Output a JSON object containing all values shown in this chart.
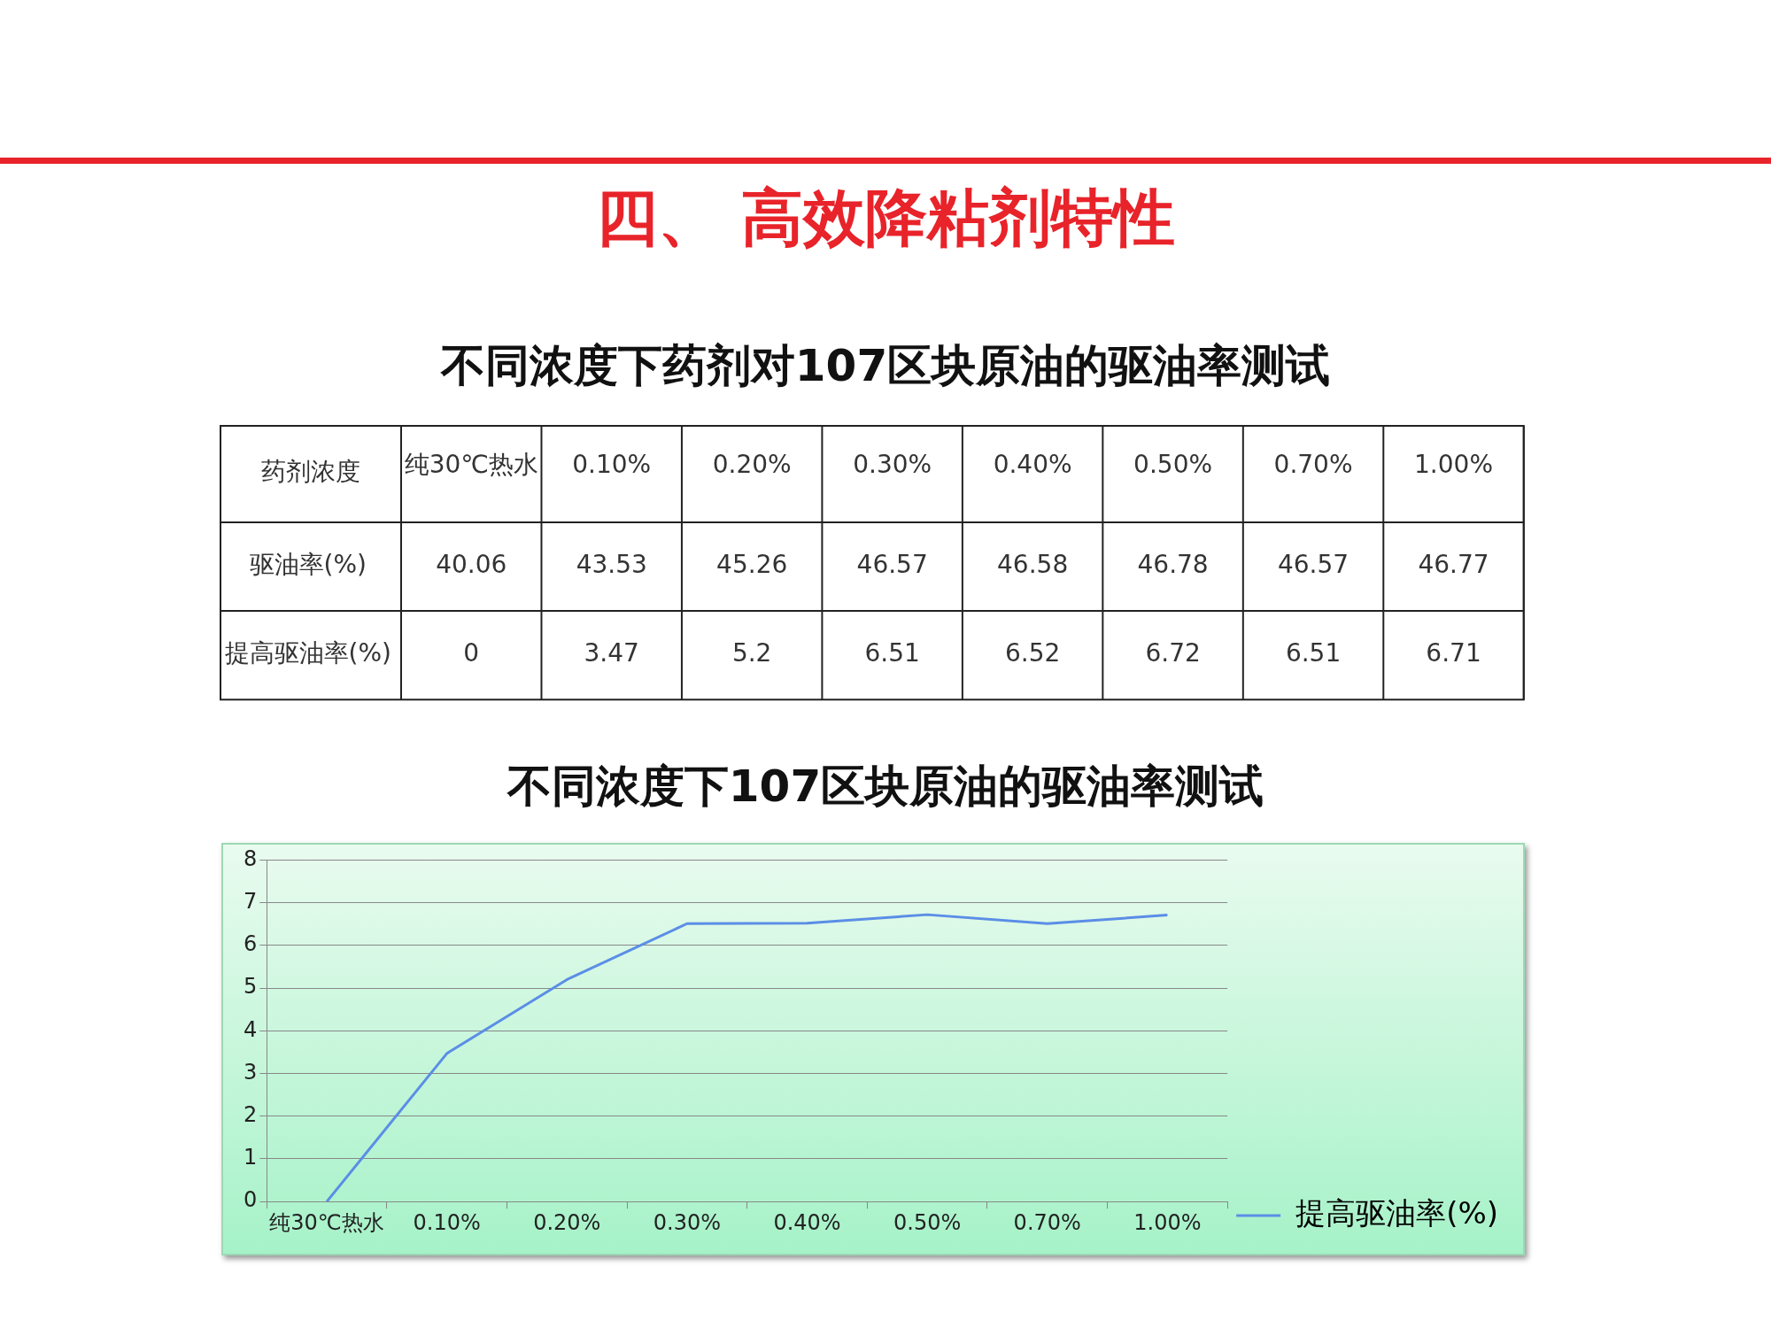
{
  "chart_data": [
    {
      "type": "heatmap",
      "title": "不同浓度下药剂对107区块原油的驱油率测试",
      "annotations": [
        "四、 高效降粘剂特性"
      ],
      "xlabel": "药剂浓度",
      "categories": [
        "纯30℃热水",
        "0.10%",
        "0.20%",
        "0.30%",
        "0.40%",
        "0.50%",
        "0.70%",
        "1.00%"
      ],
      "y_categories": [
        "驱油率(%)",
        "提高驱油率(%)"
      ],
      "data_labels": true,
      "cells": [
        [
          40.06,
          43.53,
          45.26,
          46.57,
          46.58,
          46.78,
          46.57,
          46.77
        ],
        [
          0,
          3.47,
          5.2,
          6.51,
          6.52,
          6.72,
          6.51,
          6.71
        ]
      ]
    },
    {
      "type": "line",
      "title": "不同浓度下107区块原油的驱油率测试",
      "categories": [
        "纯30℃热水",
        "0.10%",
        "0.20%",
        "0.30%",
        "0.40%",
        "0.50%",
        "0.70%",
        "1.00%"
      ],
      "series": [
        {
          "name": "提高驱油率(%)",
          "color": "#5b8ee6",
          "values": [
            0,
            3.47,
            5.2,
            6.51,
            6.52,
            6.72,
            6.51,
            6.71
          ]
        }
      ],
      "ylim": [
        0,
        8
      ],
      "yticks": [
        0,
        1,
        2,
        3,
        4,
        5,
        6,
        7,
        8
      ],
      "grid": "y",
      "legend": "right",
      "marker": "none",
      "line_style": "solid"
    }
  ]
}
